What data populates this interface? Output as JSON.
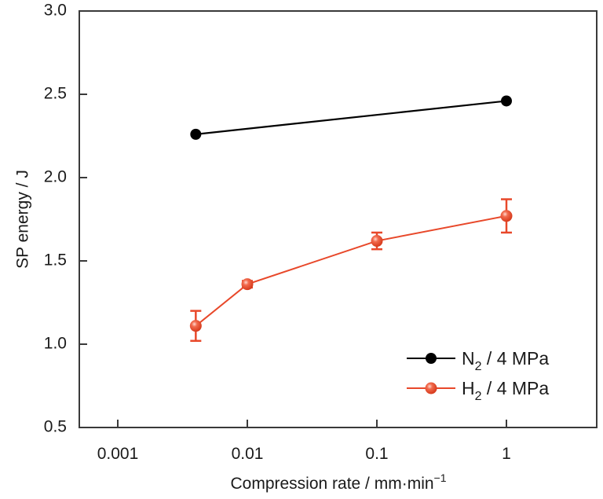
{
  "chart_data": {
    "type": "line",
    "title": "",
    "xlabel": "Compression rate / mm·min",
    "xlabel_superscript": "−1",
    "ylabel": "SP energy / J",
    "xscale": "log",
    "xlim": [
      0.0005,
      5
    ],
    "ylim": [
      0.5,
      3.0
    ],
    "xticks": [
      0.001,
      0.01,
      0.1,
      1
    ],
    "xtick_labels": [
      "0.001",
      "0.01",
      "0.1",
      "1"
    ],
    "yticks": [
      0.5,
      1.0,
      1.5,
      2.0,
      2.5,
      3.0
    ],
    "ytick_labels": [
      "0.5",
      "1.0",
      "1.5",
      "2.0",
      "2.5",
      "3.0"
    ],
    "grid": false,
    "legend_position": "bottom-right",
    "series": [
      {
        "name": "N2 / 4 MPa",
        "label_main": "N",
        "label_sub": "2",
        "label_rest": " / 4 MPa",
        "color": "#000000",
        "marker": "filled-circle",
        "x": [
          0.004,
          1
        ],
        "y": [
          2.26,
          2.46
        ],
        "err": [
          null,
          null
        ]
      },
      {
        "name": "H2 / 4 MPa",
        "label_main": "H",
        "label_sub": "2",
        "label_rest": " / 4 MPa",
        "color": "#e8482a",
        "marker": "shaded-sphere",
        "x": [
          0.004,
          0.01,
          0.1,
          1
        ],
        "y": [
          1.11,
          1.36,
          1.62,
          1.77
        ],
        "err": [
          0.09,
          0.02,
          0.05,
          0.1
        ]
      }
    ]
  }
}
